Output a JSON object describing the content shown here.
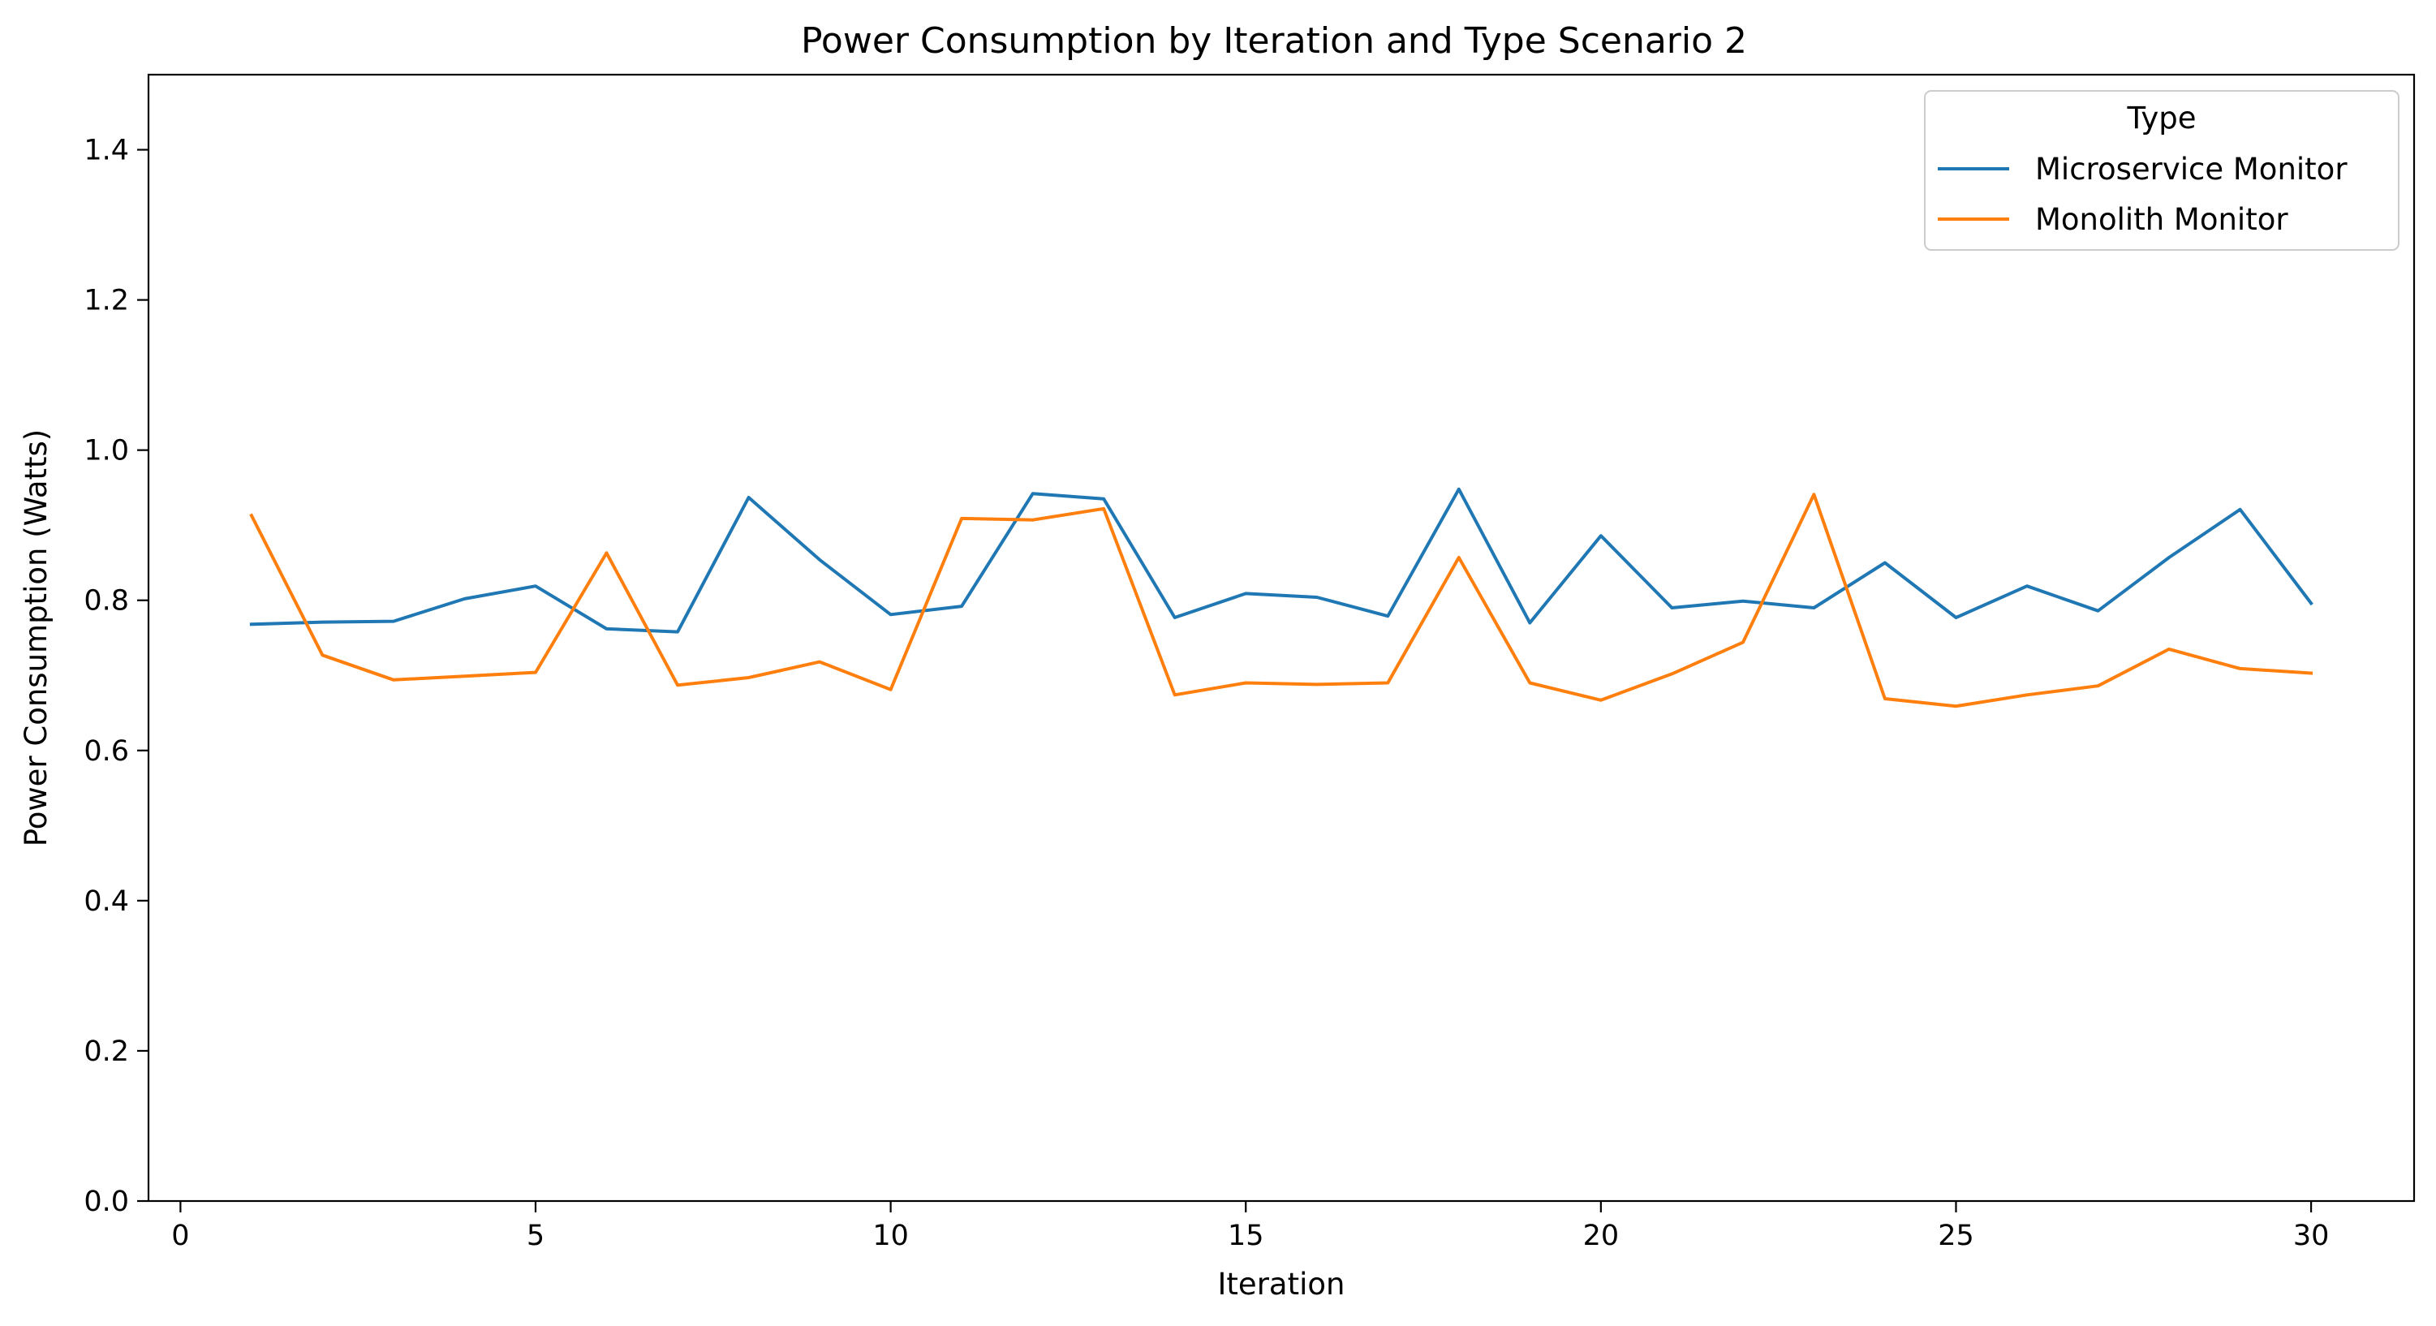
{
  "chart_data": {
    "type": "line",
    "title": "Power Consumption by Iteration and Type Scenario 2",
    "xlabel": "Iteration",
    "ylabel": "Power Consumption (Watts)",
    "xlim": [
      -0.45,
      31.45
    ],
    "ylim": [
      0.0,
      1.5
    ],
    "xticks": [
      0,
      5,
      10,
      15,
      20,
      25,
      30
    ],
    "yticks": [
      0.0,
      0.2,
      0.4,
      0.6,
      0.8,
      1.0,
      1.2,
      1.4
    ],
    "xtick_labels": [
      "0",
      "5",
      "10",
      "15",
      "20",
      "25",
      "30"
    ],
    "ytick_labels": [
      "0.0",
      "0.2",
      "0.4",
      "0.6",
      "0.8",
      "1.0",
      "1.2",
      "1.4"
    ],
    "grid": false,
    "legend": {
      "title": "Type",
      "position": "top-right"
    },
    "x": [
      1,
      2,
      3,
      4,
      5,
      6,
      7,
      8,
      9,
      10,
      11,
      12,
      13,
      14,
      15,
      16,
      17,
      18,
      19,
      20,
      21,
      22,
      23,
      24,
      25,
      26,
      27,
      28,
      29,
      30
    ],
    "series": [
      {
        "name": "Microservice Monitor",
        "color": "#1f77b4",
        "values": [
          0.768,
          0.771,
          0.772,
          0.802,
          0.819,
          0.762,
          0.758,
          0.937,
          0.854,
          0.781,
          0.792,
          0.942,
          0.935,
          0.777,
          0.809,
          0.804,
          0.779,
          0.948,
          0.77,
          0.886,
          0.79,
          0.799,
          0.79,
          0.85,
          0.777,
          0.819,
          0.786,
          0.857,
          0.921,
          0.796
        ]
      },
      {
        "name": "Monolith Monitor",
        "color": "#ff7f0e",
        "values": [
          0.913,
          0.727,
          0.694,
          0.699,
          0.704,
          0.863,
          0.687,
          0.697,
          0.718,
          0.681,
          0.909,
          0.907,
          0.922,
          0.674,
          0.69,
          0.688,
          0.69,
          0.857,
          0.69,
          0.667,
          0.702,
          0.744,
          0.941,
          0.669,
          0.659,
          0.674,
          0.686,
          0.735,
          0.709,
          0.703
        ]
      }
    ]
  }
}
